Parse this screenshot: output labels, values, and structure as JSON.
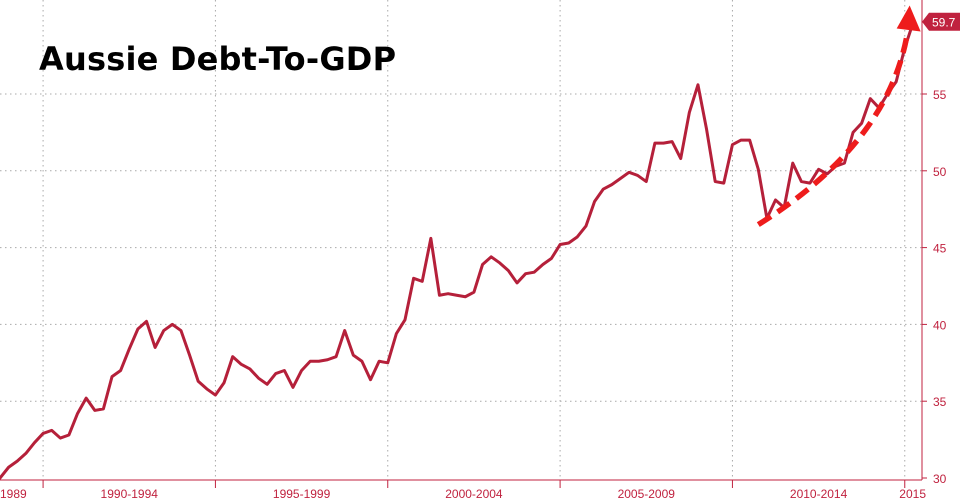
{
  "chart_data": {
    "type": "line",
    "title": "Aussie Debt-To-GDP",
    "xlabel": "",
    "ylabel": "",
    "xlim": [
      1988.75,
      2015.5
    ],
    "ylim": [
      30,
      61
    ],
    "y_ticks": [
      30,
      35,
      40,
      45,
      50,
      55
    ],
    "x_tick_labels": [
      {
        "label": "1989",
        "at": 1988.9
      },
      {
        "label": "1990-1994",
        "at": 1992.5
      },
      {
        "label": "1995-1999",
        "at": 1997.5
      },
      {
        "label": "2000-2004",
        "at": 2002.5
      },
      {
        "label": "2005-2009",
        "at": 2007.5
      },
      {
        "label": "2010-2014",
        "at": 2012.5
      },
      {
        "label": "2015",
        "at": 2015.4
      }
    ],
    "grid": true,
    "last_value_label": "59.7",
    "colors": {
      "line": "#b5203a",
      "axis": "#c0223f",
      "annotation": "#ee1c1c",
      "grid": "#a9a9a9"
    },
    "annotation": {
      "type": "dashed-arrow",
      "from": [
        2010.75,
        46.5
      ],
      "to": [
        2015.2,
        60.5
      ]
    },
    "series": [
      {
        "x": [
          1988.75,
          1989.0,
          1989.25,
          1989.5,
          1989.75,
          1990.0,
          1990.25,
          1990.5,
          1990.75,
          1991.0,
          1991.25,
          1991.5,
          1991.75,
          1992.0,
          1992.25,
          1992.5,
          1992.75,
          1993.0,
          1993.25,
          1993.5,
          1993.75,
          1994.0,
          1994.25,
          1994.5,
          1994.75,
          1995.0,
          1995.25,
          1995.5,
          1995.75,
          1996.0,
          1996.25,
          1996.5,
          1996.75,
          1997.0,
          1997.25,
          1997.5,
          1997.75,
          1998.0,
          1998.25,
          1998.5,
          1998.75,
          1999.0,
          1999.25,
          1999.5,
          1999.75,
          2000.0,
          2000.25,
          2000.5,
          2000.75,
          2001.0,
          2001.25,
          2001.5,
          2001.75,
          2002.0,
          2002.25,
          2002.5,
          2002.75,
          2003.0,
          2003.25,
          2003.5,
          2003.75,
          2004.0,
          2004.25,
          2004.5,
          2004.75,
          2005.0,
          2005.25,
          2005.5,
          2005.75,
          2006.0,
          2006.25,
          2006.5,
          2006.75,
          2007.0,
          2007.25,
          2007.5,
          2007.75,
          2008.0,
          2008.25,
          2008.5,
          2008.75,
          2009.0,
          2009.25,
          2009.5,
          2009.75,
          2010.0,
          2010.25,
          2010.5,
          2010.75,
          2011.0,
          2011.25,
          2011.5,
          2011.75,
          2012.0,
          2012.25,
          2012.5,
          2012.75,
          2013.0,
          2013.25,
          2013.5,
          2013.75,
          2014.0,
          2014.25,
          2014.5,
          2014.75,
          2015.0,
          2015.25
        ],
        "values": [
          30.0,
          30.7,
          31.1,
          31.6,
          32.3,
          32.9,
          33.1,
          32.6,
          32.8,
          34.2,
          35.2,
          34.4,
          34.5,
          36.6,
          37.0,
          38.4,
          39.7,
          40.2,
          38.5,
          39.6,
          40.0,
          39.6,
          38.0,
          36.3,
          35.8,
          35.4,
          36.2,
          37.9,
          37.4,
          37.1,
          36.5,
          36.1,
          36.8,
          37.0,
          35.9,
          37.0,
          37.6,
          37.6,
          37.7,
          37.9,
          39.6,
          38.0,
          37.6,
          36.4,
          37.6,
          37.5,
          39.4,
          40.3,
          43.0,
          42.8,
          45.6,
          41.9,
          42.0,
          41.9,
          41.8,
          42.1,
          43.9,
          44.4,
          44.0,
          43.5,
          42.7,
          43.3,
          43.4,
          43.9,
          44.3,
          45.2,
          45.3,
          45.7,
          46.4,
          48.0,
          48.8,
          49.1,
          49.5,
          49.9,
          49.7,
          49.3,
          51.8,
          51.8,
          51.9,
          50.8,
          53.8,
          55.6,
          52.7,
          49.3,
          49.2,
          51.7,
          52.0,
          52.0,
          50.1,
          46.9,
          48.1,
          47.6,
          50.5,
          49.3,
          49.2,
          50.1,
          49.8,
          50.3,
          50.5,
          52.5,
          53.1,
          54.7,
          54.1,
          55.0,
          55.8,
          58.0,
          59.7
        ]
      }
    ]
  }
}
